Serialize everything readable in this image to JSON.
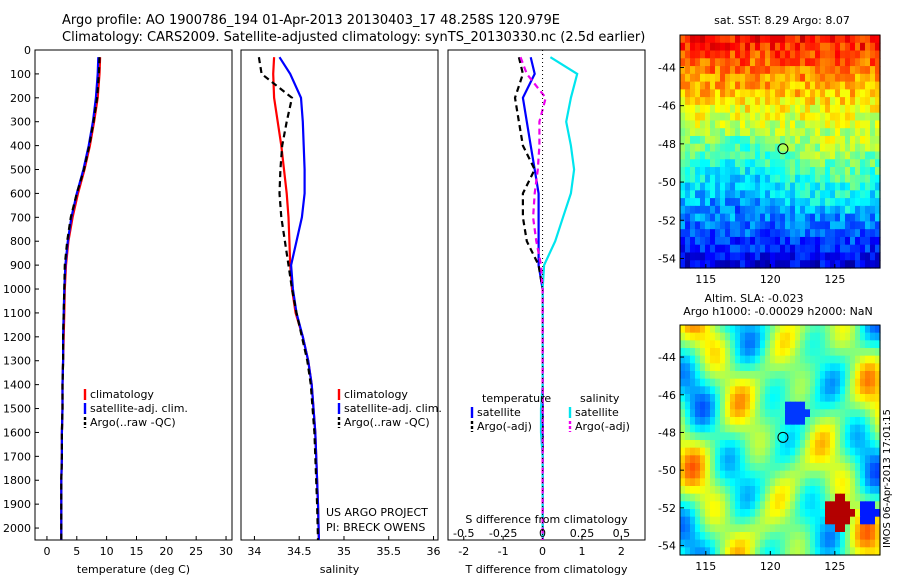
{
  "header": {
    "line1": "Argo profile: AO 1900786_194 01-Apr-2013 20130403_17 48.258S 120.979E",
    "line2": "Climatology: CARS2009. Satellite-adjusted climatology: synTS_20130330.nc (2.5d earlier)"
  },
  "credits": {
    "project": "US ARGO PROJECT",
    "pi": "PI: BRECK OWENS",
    "stamp": "IMOS 06-Apr-2013 17:01:15"
  },
  "colors": {
    "climatology": "#ff0000",
    "satellite": "#0000ff",
    "argo": "#000000",
    "sat_salinity": "#00e5ee",
    "argo_salinity": "#ee00ee"
  },
  "chart_data": [
    {
      "type": "line",
      "name": "temperature-profile",
      "xlabel": "temperature (deg C)",
      "xlim": [
        -2,
        31
      ],
      "ylim": [
        2050,
        0
      ],
      "xticks": [
        0,
        5,
        10,
        15,
        20,
        25,
        30
      ],
      "yticks": [
        0,
        100,
        200,
        300,
        400,
        500,
        600,
        700,
        800,
        900,
        1000,
        1100,
        1200,
        1300,
        1400,
        1500,
        1600,
        1700,
        1800,
        1900,
        2000
      ],
      "legend": [
        "climatology",
        "satellite-adj. clim.",
        "Argo(..raw -QC)"
      ],
      "series": [
        {
          "name": "climatology",
          "style": "solid",
          "x": [
            8.9,
            8.8,
            8.5,
            7.9,
            7.2,
            6.3,
            5.2,
            4.3,
            3.6,
            3.2,
            3.0,
            2.9,
            2.8,
            2.7,
            2.6,
            2.6,
            2.5,
            2.5,
            2.4,
            2.4,
            2.4
          ],
          "y": [
            30,
            100,
            200,
            300,
            400,
            500,
            600,
            700,
            800,
            900,
            1000,
            1100,
            1200,
            1300,
            1400,
            1500,
            1600,
            1700,
            1800,
            1900,
            2050
          ]
        },
        {
          "name": "satellite-adj. clim.",
          "style": "solid",
          "x": [
            8.6,
            8.5,
            8.2,
            7.7,
            7.0,
            6.1,
            5.0,
            4.1,
            3.5,
            3.1,
            2.9,
            2.8,
            2.7,
            2.7,
            2.6,
            2.6,
            2.5,
            2.5,
            2.4,
            2.4,
            2.4
          ],
          "y": [
            30,
            100,
            200,
            300,
            400,
            500,
            600,
            700,
            800,
            900,
            1000,
            1100,
            1200,
            1300,
            1400,
            1500,
            1600,
            1700,
            1800,
            1900,
            2050
          ]
        },
        {
          "name": "Argo(..raw -QC)",
          "style": "dashed",
          "x": [
            8.8,
            8.7,
            8.4,
            7.8,
            7.1,
            6.2,
            5.0,
            4.0,
            3.4,
            3.0,
            2.9,
            2.8,
            2.7,
            2.7,
            2.6,
            2.6,
            2.5,
            2.5,
            2.4,
            2.4,
            2.4
          ],
          "y": [
            30,
            100,
            200,
            300,
            400,
            500,
            600,
            700,
            800,
            900,
            1000,
            1100,
            1200,
            1300,
            1400,
            1500,
            1600,
            1700,
            1800,
            1900,
            2050
          ]
        }
      ]
    },
    {
      "type": "line",
      "name": "salinity-profile",
      "xlabel": "salinity",
      "xlim": [
        33.85,
        36.05
      ],
      "ylim": [
        2050,
        0
      ],
      "xticks": [
        34,
        34.5,
        35,
        35.5,
        36
      ],
      "legend": [
        "climatology",
        "satellite-adj. clim.",
        "Argo(..raw -QC)"
      ],
      "series": [
        {
          "name": "climatology",
          "style": "solid",
          "x": [
            34.22,
            34.21,
            34.22,
            34.26,
            34.3,
            34.33,
            34.36,
            34.38,
            34.39,
            34.4,
            34.42,
            34.46,
            34.54,
            34.6,
            34.64,
            34.66,
            34.68,
            34.69,
            34.7,
            34.71,
            34.72
          ],
          "y": [
            30,
            100,
            200,
            300,
            400,
            500,
            600,
            700,
            800,
            900,
            1000,
            1100,
            1200,
            1300,
            1400,
            1500,
            1600,
            1700,
            1800,
            1900,
            2050
          ]
        },
        {
          "name": "satellite-adj. clim.",
          "style": "solid",
          "x": [
            34.28,
            34.4,
            34.52,
            34.54,
            34.55,
            34.56,
            34.56,
            34.53,
            34.47,
            34.41,
            34.43,
            34.47,
            34.54,
            34.6,
            34.64,
            34.66,
            34.68,
            34.69,
            34.7,
            34.71,
            34.72
          ],
          "y": [
            30,
            100,
            200,
            300,
            400,
            500,
            600,
            700,
            800,
            900,
            1000,
            1100,
            1200,
            1300,
            1400,
            1500,
            1600,
            1700,
            1800,
            1900,
            2050
          ]
        },
        {
          "name": "Argo(..raw -QC)",
          "style": "dashed",
          "x": [
            34.05,
            34.08,
            34.42,
            34.36,
            34.31,
            34.29,
            34.28,
            34.3,
            34.34,
            34.38,
            34.42,
            34.47,
            34.53,
            34.59,
            34.63,
            34.65,
            34.67,
            34.68,
            34.69,
            34.7,
            34.71
          ],
          "y": [
            30,
            100,
            200,
            300,
            400,
            500,
            600,
            700,
            800,
            900,
            1000,
            1100,
            1200,
            1300,
            1400,
            1500,
            1600,
            1700,
            1800,
            1900,
            2050
          ]
        }
      ]
    },
    {
      "type": "line",
      "name": "difference-profile",
      "xlabel": "T difference from climatology",
      "xlabel_top": "S difference from climatology",
      "xlim": [
        -2.4,
        2.6
      ],
      "ylim": [
        2050,
        0
      ],
      "xticks": [
        -2,
        -1,
        0,
        1,
        2
      ],
      "sticks": [
        -0.5,
        -0.25,
        0,
        0.25,
        0.5
      ],
      "stick_labels": [
        "-0.5",
        "-0.25",
        "0",
        "0.25",
        "0.5"
      ],
      "legend_headers": [
        "temperature",
        "salinity"
      ],
      "legend": [
        "satellite",
        "Argo(-adj)",
        "satellite",
        "Argo(-adj)"
      ],
      "series": [
        {
          "name": "satellite",
          "quantity": "temperature",
          "style": "solid",
          "x": [
            -0.3,
            -0.2,
            -0.5,
            -0.4,
            -0.3,
            -0.2,
            -0.1,
            -0.1,
            -0.1,
            -0.1,
            0.0,
            0.0,
            0.0,
            0.0,
            0.0,
            0.0,
            0.0,
            0.0,
            0.0,
            0.0,
            0.0
          ],
          "y": [
            30,
            100,
            200,
            300,
            400,
            500,
            600,
            700,
            800,
            900,
            1000,
            1100,
            1200,
            1300,
            1400,
            1500,
            1600,
            1700,
            1800,
            1900,
            2050
          ]
        },
        {
          "name": "Argo(-adj)",
          "quantity": "temperature",
          "style": "dashed",
          "x": [
            -0.6,
            -0.5,
            -0.7,
            -0.6,
            -0.5,
            -0.2,
            -0.5,
            -0.5,
            -0.4,
            -0.1,
            0.0,
            0.0,
            0.0,
            0.0,
            0.0,
            0.0,
            0.0,
            0.0,
            0.0,
            0.0,
            0.0
          ],
          "y": [
            30,
            100,
            200,
            300,
            400,
            500,
            600,
            700,
            800,
            900,
            1000,
            1100,
            1200,
            1300,
            1400,
            1500,
            1600,
            1700,
            1800,
            1900,
            2050
          ]
        },
        {
          "name": "satellite",
          "quantity": "salinity",
          "style": "solid",
          "x": [
            0.05,
            0.22,
            0.18,
            0.15,
            0.18,
            0.2,
            0.18,
            0.13,
            0.08,
            0.01,
            0.0,
            0.0,
            0.0,
            0.0,
            0.0,
            -0.01,
            -0.01,
            0.0,
            0.0,
            0.0,
            0.0
          ],
          "y": [
            30,
            100,
            200,
            300,
            400,
            500,
            600,
            700,
            800,
            900,
            1000,
            1100,
            1200,
            1300,
            1400,
            1500,
            1600,
            1700,
            1800,
            1900,
            2050
          ]
        },
        {
          "name": "Argo(-adj)",
          "quantity": "salinity",
          "style": "dashed",
          "x": [
            -0.14,
            -0.1,
            0.02,
            -0.02,
            -0.02,
            -0.03,
            -0.05,
            -0.06,
            -0.04,
            -0.01,
            0.0,
            0.0,
            0.0,
            0.0,
            0.0,
            0.0,
            0.0,
            0.0,
            0.0,
            0.0,
            0.0
          ],
          "y": [
            30,
            100,
            200,
            300,
            400,
            500,
            600,
            700,
            800,
            900,
            1000,
            1100,
            1200,
            1300,
            1400,
            1500,
            1600,
            1700,
            1800,
            1900,
            2050
          ]
        }
      ]
    },
    {
      "type": "heatmap",
      "name": "sst-map",
      "title": "sat. SST: 8.29 Argo: 8.07",
      "xlim": [
        113,
        128.5
      ],
      "ylim": [
        -54.5,
        -42.3
      ],
      "xticks": [
        115,
        120,
        125
      ],
      "yticks": [
        -44,
        -46,
        -48,
        -50,
        -52,
        -54
      ],
      "marker": {
        "lon": 120.979,
        "lat": -48.258
      }
    },
    {
      "type": "heatmap",
      "name": "sla-map",
      "title": "Altim. SLA: -0.023",
      "subtitle": "Argo h1000: -0.00029 h2000: NaN",
      "xlim": [
        113,
        128.5
      ],
      "ylim": [
        -54.5,
        -42.3
      ],
      "xticks": [
        115,
        120,
        125
      ],
      "yticks": [
        -44,
        -46,
        -48,
        -50,
        -52,
        -54
      ],
      "marker": {
        "lon": 120.979,
        "lat": -48.258
      }
    }
  ]
}
